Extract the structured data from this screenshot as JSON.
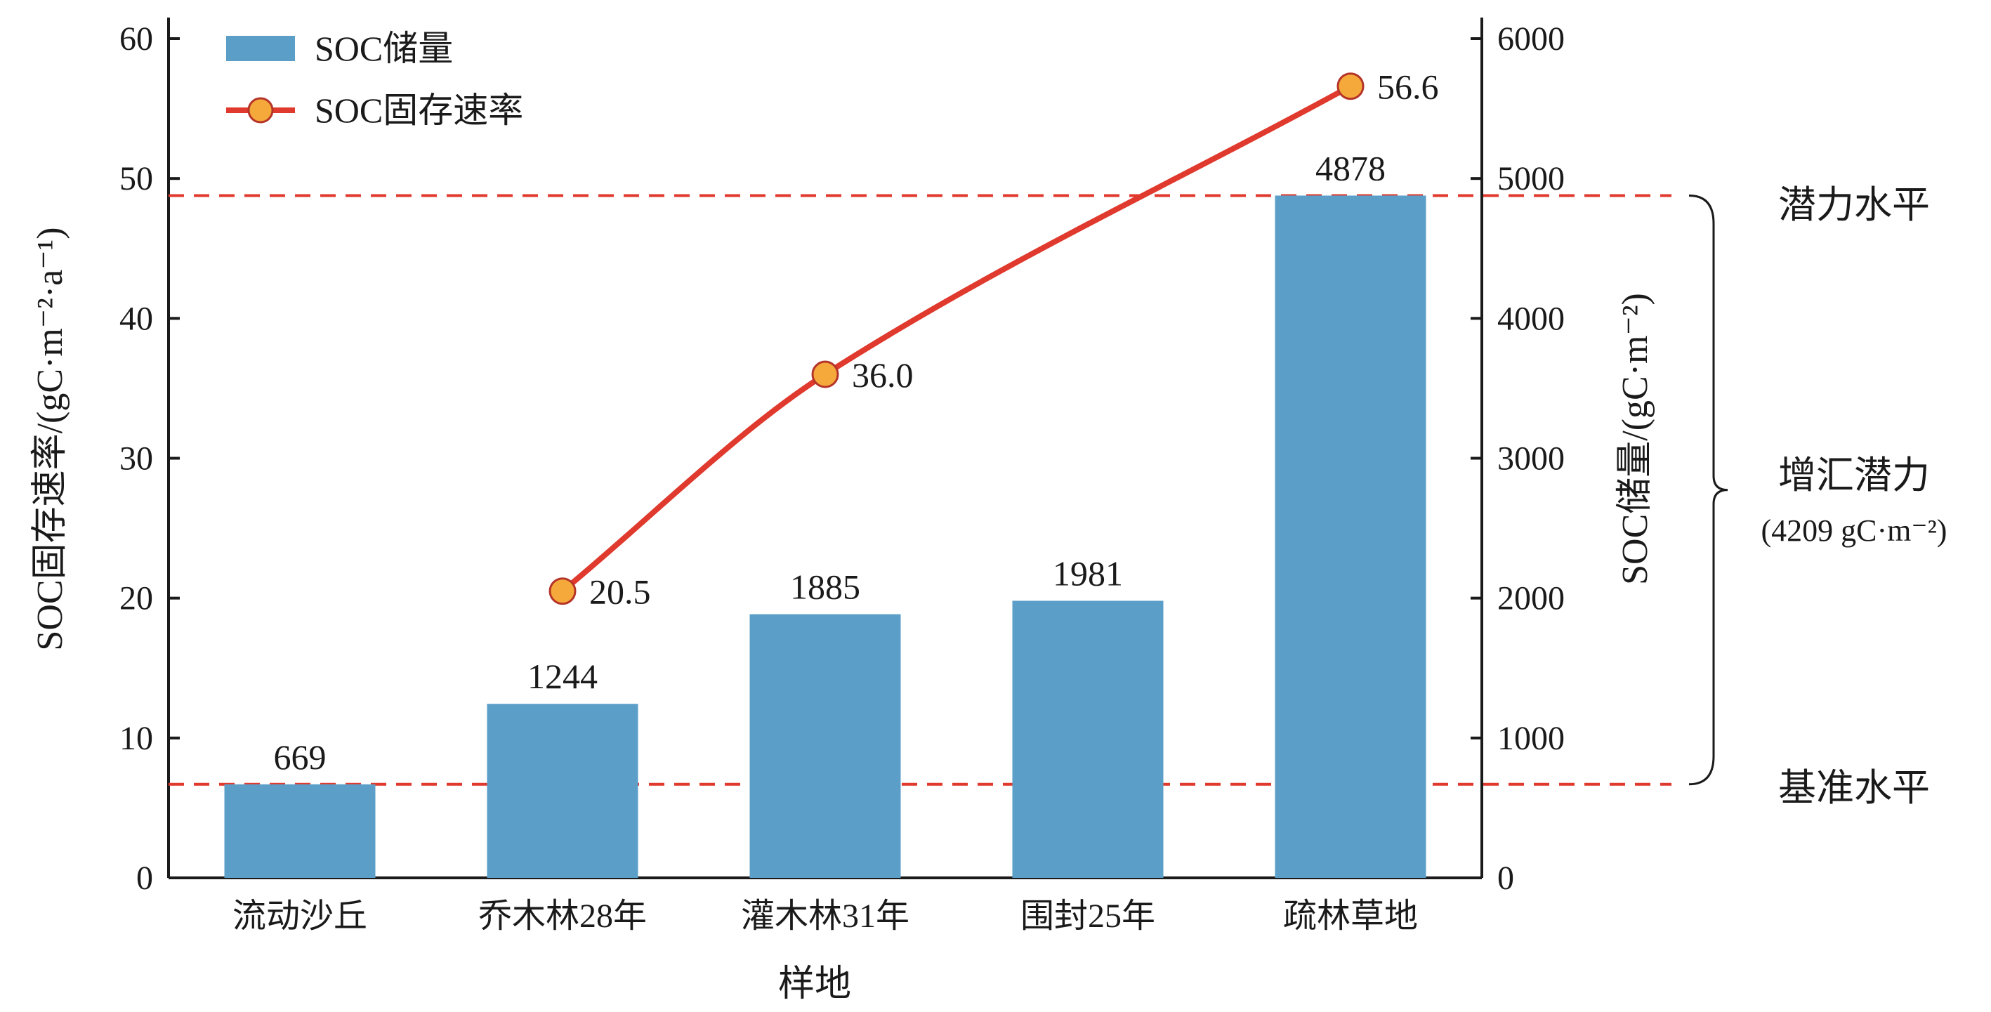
{
  "chart_data": {
    "type": "bar+line",
    "categories": [
      "流动沙丘",
      "乔木林28年",
      "灌木林31年",
      "围封25年",
      "疏林草地"
    ],
    "series": [
      {
        "name": "SOC储量",
        "type": "bar",
        "axis": "right",
        "values": [
          669,
          1244,
          1885,
          1981,
          4878
        ],
        "labels": [
          "669",
          "1244",
          "1885",
          "1981",
          "4878"
        ],
        "color": "#5b9fc9"
      },
      {
        "name": "SOC固存速率",
        "type": "line",
        "axis": "left",
        "values": [
          null,
          20.5,
          36.0,
          null,
          56.6
        ],
        "labels": [
          "",
          "20.5",
          "36.0",
          "",
          "56.6"
        ],
        "line_color": "#e0392d",
        "marker_color": "#f5a93a"
      }
    ],
    "xlabel": "样地",
    "ylabel_left": "SOC固存速率/(gC·m⁻²·a⁻¹)",
    "ylabel_right": "SOC储量/(gC·m⁻²)",
    "ylim_left": [
      0,
      60
    ],
    "yticks_left": [
      "0",
      "10",
      "20",
      "30",
      "40",
      "50",
      "60"
    ],
    "ylim_right": [
      0,
      6000
    ],
    "yticks_right": [
      "0",
      "1000",
      "2000",
      "3000",
      "4000",
      "5000",
      "6000"
    ],
    "reference_lines": [
      {
        "axis": "right",
        "value": 4878,
        "label": "潜力水平",
        "color": "#e0392d",
        "style": "dashed"
      },
      {
        "axis": "right",
        "value": 669,
        "label": "基准水平",
        "color": "#e0392d",
        "style": "dashed"
      }
    ],
    "bracket": {
      "label": "增汇潜力",
      "sublabel": "(4209 gC·m⁻²)"
    },
    "legend": {
      "position": "top-left"
    },
    "grid": false
  }
}
